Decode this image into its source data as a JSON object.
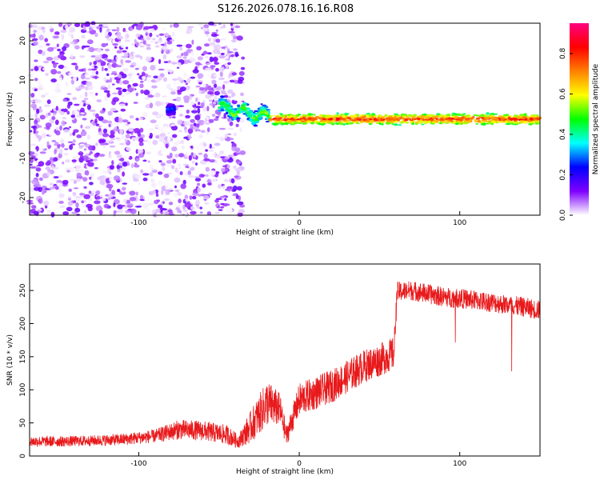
{
  "title": "S126.2026.078.16.16.R08",
  "chart_data": [
    {
      "type": "heatmap",
      "title": "",
      "xlabel": "Height of straight line (km)",
      "ylabel": "Frequency (Hz)",
      "xlim": [
        -168,
        150
      ],
      "ylim": [
        -24.5,
        24.5
      ],
      "x_ticks": [
        -100,
        0,
        100
      ],
      "y_ticks": [
        -20,
        -10,
        0,
        10,
        20
      ],
      "grid": false,
      "colorbar": {
        "label": "Normalized spectral amplitude",
        "range": [
          0,
          0.95
        ],
        "ticks": [
          0.0,
          0.2,
          0.4,
          0.6,
          0.8
        ],
        "tick_labels": [
          "0.0",
          "0.2",
          "0.4",
          "0.6",
          "0.8"
        ],
        "colormap": [
          "#ffffff",
          "#7f00ff",
          "#0000ff",
          "#00ffff",
          "#00ff00",
          "#ffff00",
          "#ff8000",
          "#ff0000",
          "#ff0080"
        ]
      },
      "features": [
        {
          "x_range": [
            -168,
            -35
          ],
          "frequency_range": [
            -24.5,
            24.5
          ],
          "amplitude_range": [
            0.0,
            0.15
          ]
        },
        {
          "x_range": [
            -82,
            -78
          ],
          "frequency_range": [
            1,
            4
          ],
          "amplitude_range": [
            0.1,
            0.3
          ]
        },
        {
          "x_range": [
            -50,
            -18
          ],
          "frequency_range": [
            -2,
            6
          ],
          "amplitude_range": [
            0.2,
            0.6
          ]
        },
        {
          "x_range": [
            -18,
            150
          ],
          "frequency_range": [
            -1.5,
            1.5
          ],
          "amplitude_range": [
            0.4,
            0.9
          ]
        }
      ]
    },
    {
      "type": "line",
      "title": "",
      "xlabel": "Height of straight line (km)",
      "ylabel": "SNR (10 * v/v)",
      "xlim": [
        -168,
        150
      ],
      "ylim": [
        0,
        290
      ],
      "x_ticks": [
        -100,
        0,
        100
      ],
      "y_ticks": [
        0,
        50,
        100,
        150,
        200,
        250
      ],
      "grid": false,
      "series": [
        {
          "color": "#e8191b",
          "x": [
            -168,
            -150,
            -130,
            -110,
            -90,
            -75,
            -60,
            -45,
            -38,
            -30,
            -20,
            -12,
            -8,
            0,
            10,
            20,
            30,
            40,
            50,
            59,
            61,
            70,
            80,
            90,
            100,
            110,
            120,
            130,
            140,
            150
          ],
          "mean": [
            22,
            22,
            23,
            25,
            30,
            40,
            38,
            32,
            22,
            45,
            80,
            70,
            30,
            85,
            95,
            105,
            120,
            135,
            145,
            155,
            248,
            250,
            245,
            240,
            238,
            235,
            232,
            228,
            225,
            220
          ],
          "spread": [
            8,
            8,
            8,
            9,
            10,
            15,
            15,
            15,
            10,
            25,
            35,
            25,
            15,
            25,
            25,
            25,
            25,
            25,
            25,
            25,
            15,
            15,
            15,
            15,
            15,
            15,
            15,
            15,
            15,
            15
          ]
        }
      ]
    }
  ]
}
